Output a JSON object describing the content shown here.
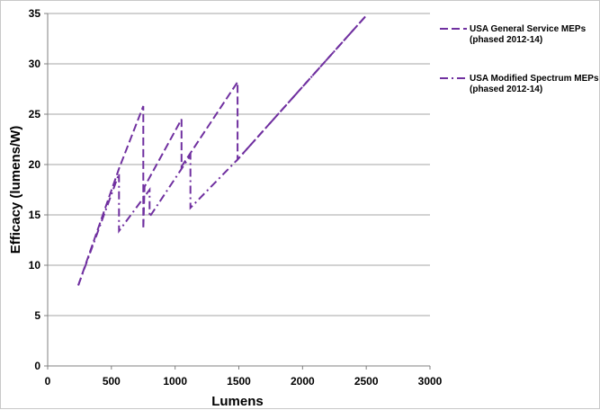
{
  "chart_data": {
    "type": "line",
    "xlabel": "Lumens",
    "ylabel": "Efficacy (lumens/W)",
    "xlim": [
      0,
      3000
    ],
    "ylim": [
      0,
      35
    ],
    "xticks": [
      "0",
      "500",
      "1000",
      "1500",
      "2000",
      "2500",
      "3000"
    ],
    "yticks": [
      "0",
      "5",
      "10",
      "15",
      "20",
      "25",
      "30",
      "35"
    ],
    "grid": "horizontal",
    "legend_position": "right",
    "series": [
      {
        "name_line1": "USA General Service MEPs",
        "name_line2": "(phased 2012-14)",
        "style": "dashed",
        "color": "#7030a0",
        "points": [
          [
            240,
            8.0
          ],
          [
            560,
            19.6
          ],
          [
            750,
            25.8
          ],
          [
            750,
            13.6
          ],
          [
            760,
            17.8
          ],
          [
            1050,
            24.5
          ],
          [
            1050,
            19.8
          ],
          [
            1490,
            28.2
          ],
          [
            1490,
            20.5
          ],
          [
            2500,
            34.8
          ]
        ]
      },
      {
        "name_line1": "USA Modified Spectrum MEPs",
        "name_line2": "(phased 2012-14)",
        "style": "dash-dot",
        "color": "#7030a0",
        "points": [
          [
            240,
            8.0
          ],
          [
            560,
            19.1
          ],
          [
            560,
            13.4
          ],
          [
            800,
            17.5
          ],
          [
            800,
            14.8
          ],
          [
            1120,
            20.9
          ],
          [
            1120,
            15.7
          ],
          [
            1490,
            20.5
          ],
          [
            2500,
            34.8
          ]
        ]
      }
    ]
  }
}
